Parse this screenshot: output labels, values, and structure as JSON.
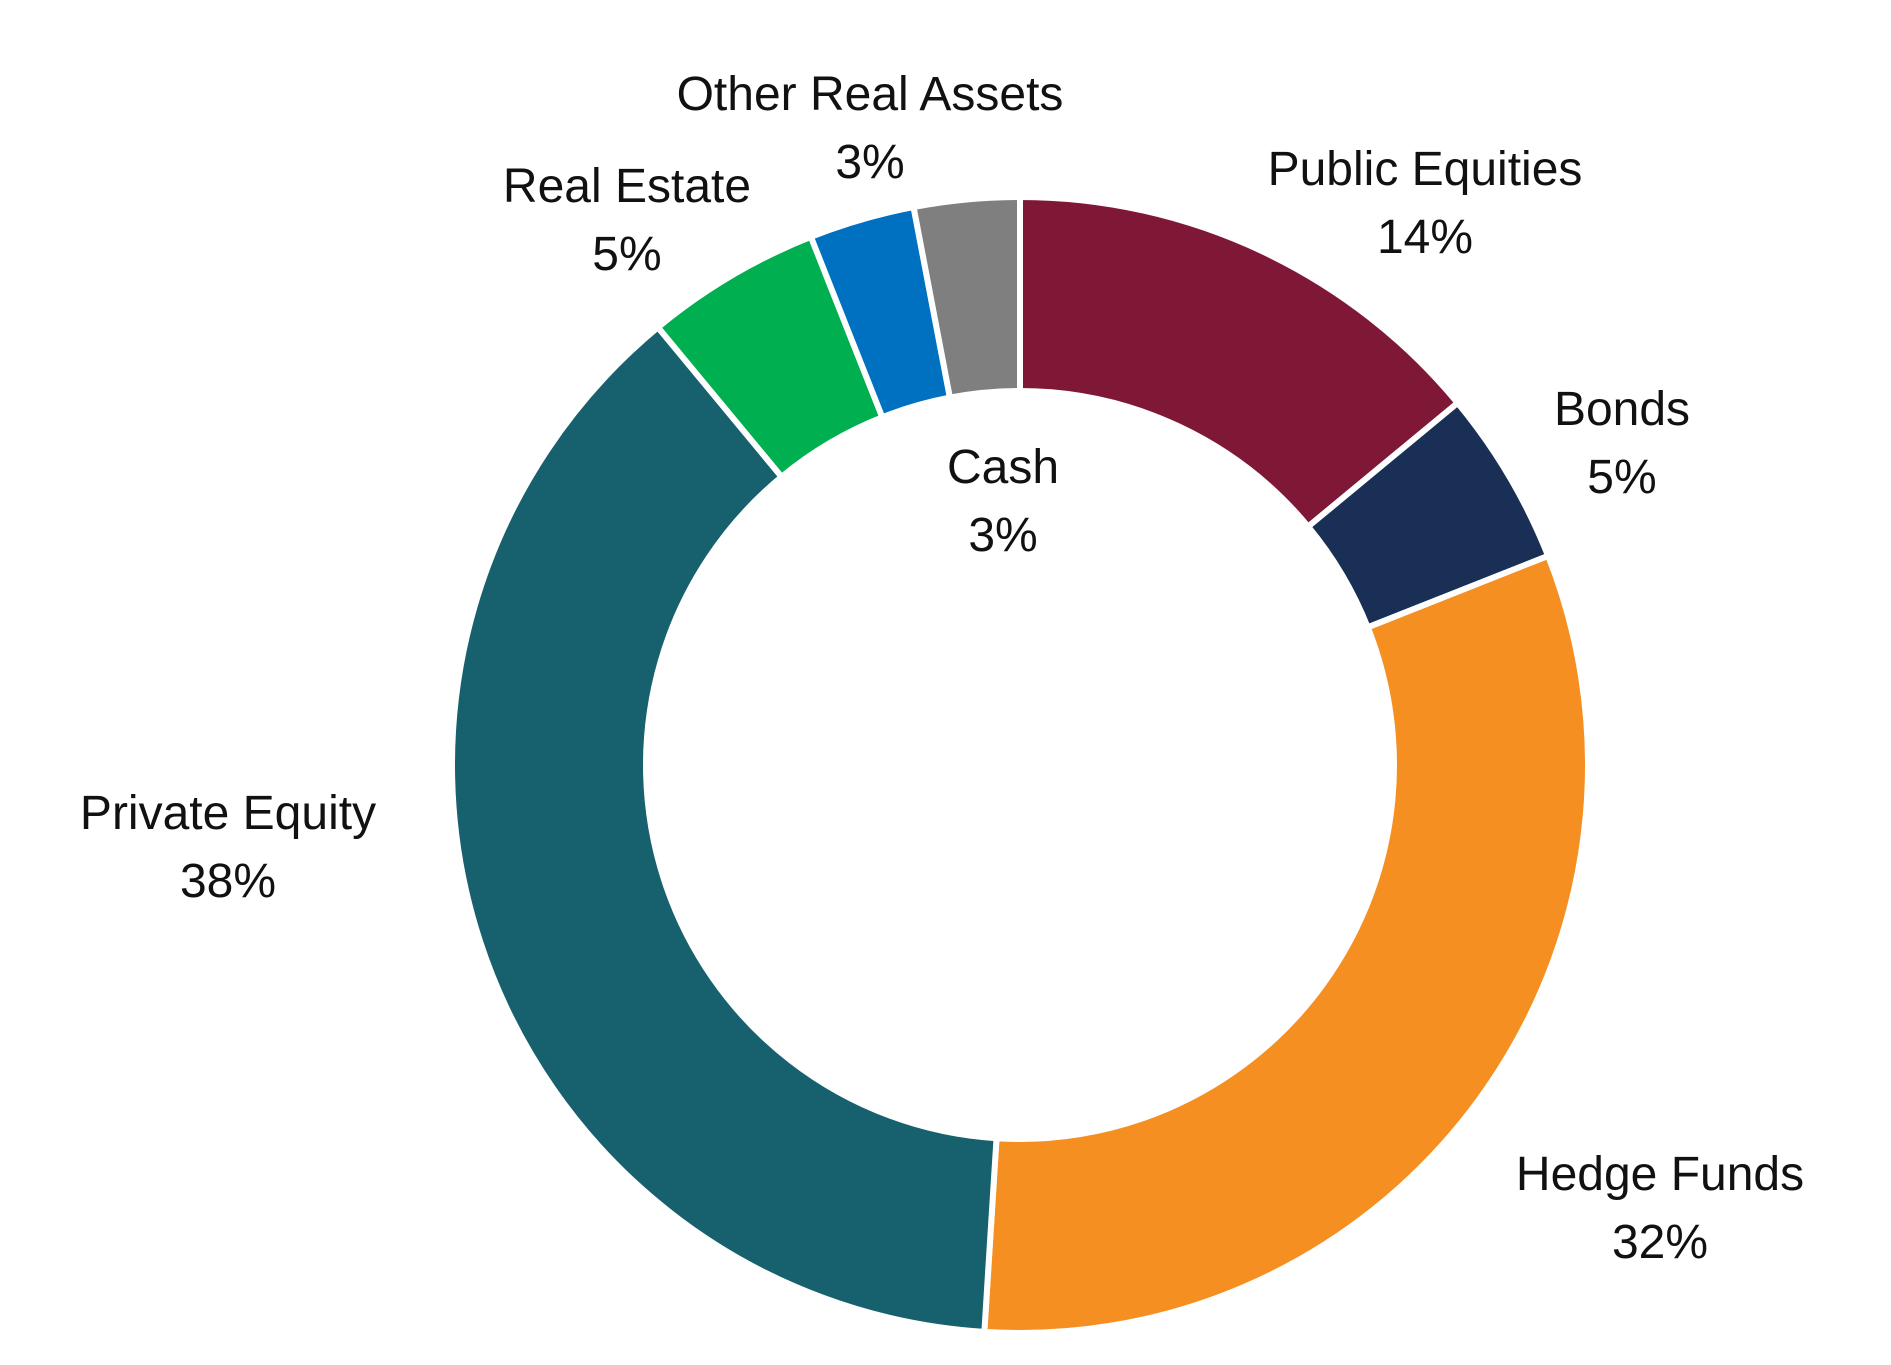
{
  "chart_data": {
    "type": "pie",
    "variant": "donut",
    "title": "",
    "legend": "none",
    "slices": [
      {
        "label": "Public Equities",
        "value": 14,
        "display": "14%",
        "color": "#7F1737"
      },
      {
        "label": "Bonds",
        "value": 5,
        "display": "5%",
        "color": "#1A2F55"
      },
      {
        "label": "Hedge Funds",
        "value": 32,
        "display": "32%",
        "color": "#F58F22"
      },
      {
        "label": "Private Equity",
        "value": 38,
        "display": "38%",
        "color": "#17606E"
      },
      {
        "label": "Real Estate",
        "value": 5,
        "display": "5%",
        "color": "#00AF50"
      },
      {
        "label": "Cash",
        "value": 3,
        "display": "3%",
        "color": "#0070C0"
      },
      {
        "label": "Other Real Assets",
        "value": 3,
        "display": "3%",
        "color": "#7F7F7F"
      }
    ]
  }
}
